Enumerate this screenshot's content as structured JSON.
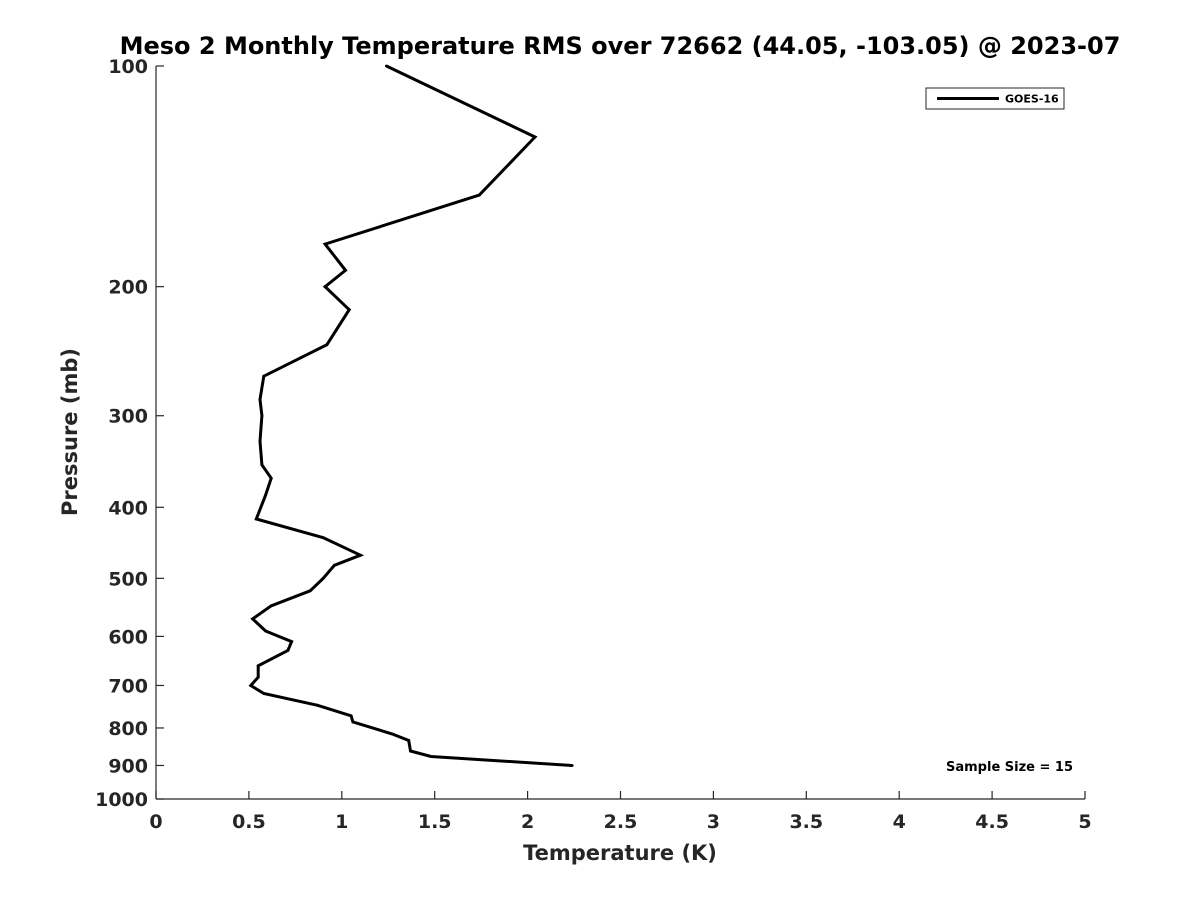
{
  "chart_data": {
    "type": "line",
    "title": "Meso 2 Monthly Temperature RMS over 72662 (44.05, -103.05) @ 2023-07",
    "xlabel": "Temperature (K)",
    "ylabel": "Pressure (mb)",
    "xlim": [
      0,
      5
    ],
    "ylim": [
      1000,
      100
    ],
    "yscale": "log",
    "x_ticks": [
      0,
      0.5,
      1,
      1.5,
      2,
      2.5,
      3,
      3.5,
      4,
      4.5,
      5
    ],
    "x_tick_labels": [
      "0",
      "0.5",
      "1",
      "1.5",
      "2",
      "2.5",
      "3",
      "3.5",
      "4",
      "4.5",
      "5"
    ],
    "y_ticks": [
      100,
      200,
      300,
      400,
      500,
      600,
      700,
      800,
      900,
      1000
    ],
    "y_tick_labels": [
      "100",
      "200",
      "300",
      "400",
      "500",
      "600",
      "700",
      "800",
      "900",
      "1000"
    ],
    "legend_position": "top-right",
    "grid": false,
    "annotation": "Sample Size = 15",
    "series": [
      {
        "name": "GOES-16",
        "color": "#000000",
        "points": [
          {
            "x": 1.24,
            "y": 100
          },
          {
            "x": 2.04,
            "y": 125
          },
          {
            "x": 1.74,
            "y": 150
          },
          {
            "x": 0.91,
            "y": 175
          },
          {
            "x": 1.02,
            "y": 190
          },
          {
            "x": 0.91,
            "y": 200
          },
          {
            "x": 1.04,
            "y": 215
          },
          {
            "x": 0.92,
            "y": 240
          },
          {
            "x": 0.58,
            "y": 265
          },
          {
            "x": 0.56,
            "y": 285
          },
          {
            "x": 0.57,
            "y": 300
          },
          {
            "x": 0.56,
            "y": 325
          },
          {
            "x": 0.57,
            "y": 350
          },
          {
            "x": 0.62,
            "y": 365
          },
          {
            "x": 0.59,
            "y": 385
          },
          {
            "x": 0.54,
            "y": 415
          },
          {
            "x": 0.9,
            "y": 440
          },
          {
            "x": 1.1,
            "y": 465
          },
          {
            "x": 0.96,
            "y": 480
          },
          {
            "x": 0.9,
            "y": 500
          },
          {
            "x": 0.83,
            "y": 520
          },
          {
            "x": 0.62,
            "y": 545
          },
          {
            "x": 0.52,
            "y": 568
          },
          {
            "x": 0.59,
            "y": 590
          },
          {
            "x": 0.73,
            "y": 610
          },
          {
            "x": 0.71,
            "y": 627
          },
          {
            "x": 0.55,
            "y": 658
          },
          {
            "x": 0.55,
            "y": 682
          },
          {
            "x": 0.51,
            "y": 700
          },
          {
            "x": 0.58,
            "y": 718
          },
          {
            "x": 0.87,
            "y": 745
          },
          {
            "x": 1.05,
            "y": 770
          },
          {
            "x": 1.06,
            "y": 785
          },
          {
            "x": 1.27,
            "y": 815
          },
          {
            "x": 1.36,
            "y": 832
          },
          {
            "x": 1.37,
            "y": 860
          },
          {
            "x": 1.48,
            "y": 875
          },
          {
            "x": 2.24,
            "y": 900
          }
        ]
      }
    ]
  }
}
